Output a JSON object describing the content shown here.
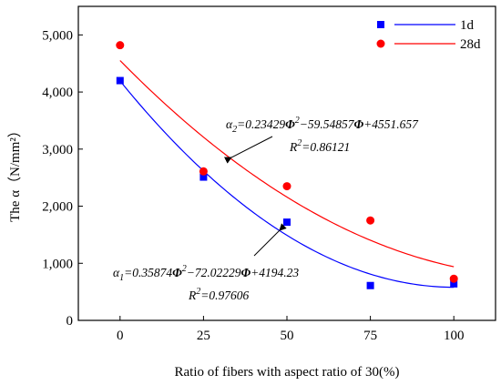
{
  "chart_data": {
    "type": "scatter",
    "title": "",
    "xlabel": "Ratio of fibers with aspect ratio of 30(%)",
    "ylabel": "The α（N/mm²）",
    "xlim": [
      -12.5,
      112.5
    ],
    "ylim": [
      0,
      5500
    ],
    "x_ticks": [
      0,
      25,
      50,
      75,
      100
    ],
    "y_ticks": [
      0,
      1000,
      2000,
      3000,
      4000,
      5000
    ],
    "x_tick_labels": [
      "0",
      "25",
      "50",
      "75",
      "100"
    ],
    "y_tick_labels": [
      "0",
      "1,000",
      "2,000",
      "3,000",
      "4,000",
      "5,000"
    ],
    "grid": false,
    "legend_position": "top-right",
    "series": [
      {
        "name": "1d",
        "marker": "square",
        "color": "#0000ff",
        "x": [
          0,
          25,
          50,
          75,
          100
        ],
        "y": [
          4200,
          2510,
          1720,
          610,
          640
        ],
        "fit": {
          "a": 0.35874,
          "b": -72.02229,
          "c": 4194.23,
          "r2": 0.97606
        }
      },
      {
        "name": "28d",
        "marker": "circle",
        "color": "#ff0000",
        "x": [
          0,
          25,
          50,
          75,
          100
        ],
        "y": [
          4820,
          2610,
          2350,
          1750,
          730
        ],
        "fit": {
          "a": 0.23429,
          "b": -59.54857,
          "c": 4551.657,
          "r2": 0.86121
        }
      }
    ],
    "annotations": {
      "eq2_prefix": "α",
      "eq2_sub": "2",
      "eq2_mid1": "=0.23429",
      "eq2_phi1": "Φ",
      "eq2_sup": "2",
      "eq2_mid2": "−59.54857",
      "eq2_phi2": "Φ",
      "eq2_tail": "+4551.657",
      "r2_2_prefix": "R",
      "r2_2_sup": "2",
      "r2_2_value": "=0.86121",
      "eq1_prefix": "α",
      "eq1_sub": "1",
      "eq1_mid1": "=0.35874",
      "eq1_phi1": "Φ",
      "eq1_sup": "2",
      "eq1_mid2": "−72.02229",
      "eq1_phi2": "Φ",
      "eq1_tail": "+4194.23",
      "r2_1_prefix": "R",
      "r2_1_sup": "2",
      "r2_1_value": "=0.97606"
    }
  }
}
